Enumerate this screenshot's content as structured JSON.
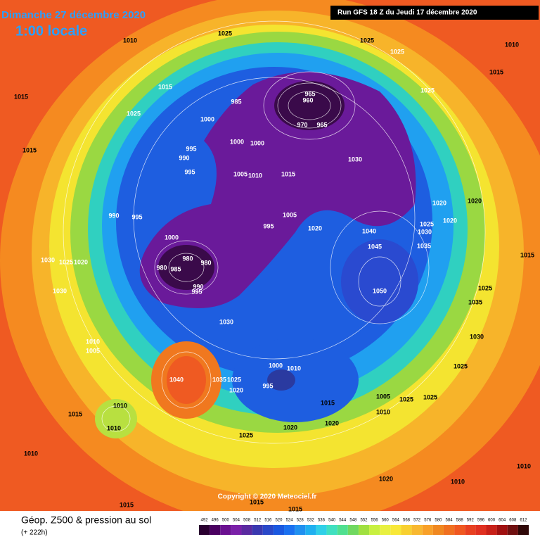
{
  "header": {
    "date": "Dimanche 27 décembre 2020",
    "time": "1:00 locale",
    "run": "Run GFS 18 Z du Jeudi 17 décembre 2020"
  },
  "footer": {
    "title": "Géop. Z500 & pression au sol",
    "subtitle": "(+ 222h)",
    "copyright": "Copyright © 2020 Meteociel.fr"
  },
  "scale": {
    "ticks": [
      492,
      496,
      500,
      504,
      508,
      512,
      516,
      520,
      524,
      528,
      532,
      536,
      540,
      544,
      548,
      552,
      556,
      560,
      564,
      568,
      572,
      576,
      580,
      584,
      588,
      592,
      596,
      600,
      604,
      608,
      612
    ],
    "colors": [
      "#2a0030",
      "#4a0060",
      "#6a1090",
      "#7a20a8",
      "#5a2aa0",
      "#3a38b0",
      "#2a48c8",
      "#1a58e0",
      "#1a70f0",
      "#2090f0",
      "#20b0f0",
      "#30d0e8",
      "#40e0c0",
      "#50e090",
      "#70d860",
      "#a0e040",
      "#c8f040",
      "#e8f040",
      "#f8e838",
      "#f8d030",
      "#f8b830",
      "#f8a028",
      "#f08820",
      "#f07020",
      "#f05820",
      "#e84020",
      "#e03020",
      "#c82018",
      "#a01010",
      "#701010",
      "#300808"
    ]
  },
  "isobars": [
    "1025",
    "1010",
    "1025",
    "1025",
    "1010",
    "1015",
    "1015",
    "1015",
    "1025",
    "985",
    "965",
    "960",
    "1000",
    "1025",
    "1015",
    "995",
    "1000",
    "1000",
    "970",
    "965",
    "990",
    "995",
    "1005",
    "1010",
    "1015",
    "1030",
    "1020",
    "1020",
    "990",
    "995",
    "995",
    "1005",
    "1020",
    "1040",
    "1025",
    "1030",
    "1020",
    "1000",
    "1045",
    "1035",
    "1015",
    "980",
    "980",
    "980",
    "985",
    "1030",
    "1025",
    "1020",
    "1030",
    "990",
    "995",
    "1050",
    "1025",
    "1035",
    "1030",
    "1030",
    "1010",
    "1005",
    "1040",
    "1035",
    "1025",
    "1020",
    "1000",
    "1010",
    "995",
    "1025",
    "1005",
    "1025",
    "1025",
    "1015",
    "1010",
    "1015",
    "1010",
    "1010",
    "1020",
    "1020",
    "1025",
    "1010",
    "1010",
    "1020",
    "1010",
    "1015",
    "1015",
    "1015"
  ]
}
